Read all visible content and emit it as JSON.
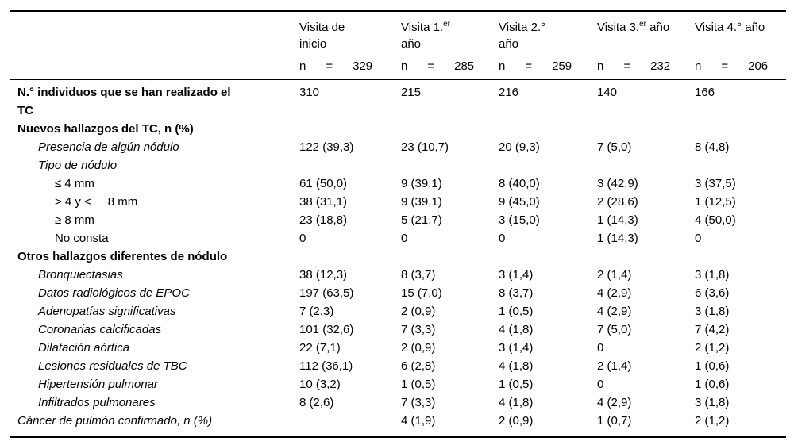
{
  "colors": {
    "text": "#000000",
    "background": "#ffffff",
    "rule": "#000000"
  },
  "table": {
    "columns": [
      {
        "line1_pre": "Visita de",
        "line1_sup": "",
        "line1_post": "",
        "line2": "inicio",
        "n_label": "n      =      329"
      },
      {
        "line1_pre": "Visita 1.",
        "line1_sup": "er",
        "line1_post": "",
        "line2": "año",
        "n_label": "n      =      285"
      },
      {
        "line1_pre": "Visita 2.°",
        "line1_sup": "",
        "line1_post": "",
        "line2": "año",
        "n_label": "n      =      259"
      },
      {
        "line1_pre": "Visita 3.",
        "line1_sup": "er",
        "line1_post": " año",
        "line2": "",
        "n_label": "n      =      232"
      },
      {
        "line1_pre": "Visita 4.° año",
        "line1_sup": "",
        "line1_post": "",
        "line2": "",
        "n_label": "n      =      206"
      }
    ],
    "rows": [
      {
        "label": "N.° individuos que se han realizado el",
        "label2": "TC",
        "style": "bold",
        "indent": 0,
        "values": [
          "310",
          "215",
          "216",
          "140",
          "166"
        ]
      },
      {
        "label": "Nuevos hallazgos del TC, n (%)",
        "label2": "",
        "style": "bold",
        "indent": 0,
        "values": [
          "",
          "",
          "",
          "",
          ""
        ]
      },
      {
        "label": "Presencia de algún nódulo",
        "label2": "",
        "style": "italic",
        "indent": 1,
        "values": [
          "122 (39,3)",
          "23 (10,7)",
          "20 (9,3)",
          "7 (5,0)",
          "8 (4,8)"
        ]
      },
      {
        "label": "Tipo de nódulo",
        "label2": "",
        "style": "italic",
        "indent": 1,
        "values": [
          "",
          "",
          "",
          "",
          ""
        ]
      },
      {
        "label": "≤ 4 mm",
        "label2": "",
        "style": "regular",
        "indent": 2,
        "values": [
          "61 (50,0)",
          "9 (39,1)",
          "8 (40,0)",
          "3 (42,9)",
          "3 (37,5)"
        ]
      },
      {
        "label": "> 4 y <     8 mm",
        "label2": "",
        "style": "regular",
        "indent": 2,
        "values": [
          "38 (31,1)",
          "9 (39,1)",
          "9 (45,0)",
          "2 (28,6)",
          "1 (12,5)"
        ]
      },
      {
        "label": "≥ 8 mm",
        "label2": "",
        "style": "regular",
        "indent": 2,
        "values": [
          "23 (18,8)",
          "5 (21,7)",
          "3 (15,0)",
          "1 (14,3)",
          "4 (50,0)"
        ]
      },
      {
        "label": "No consta",
        "label2": "",
        "style": "regular",
        "indent": 2,
        "values": [
          "0",
          "0",
          "0",
          "1 (14,3)",
          "0"
        ]
      },
      {
        "label": "Otros hallazgos diferentes de nódulo",
        "label2": "",
        "style": "bold",
        "indent": 0,
        "values": [
          "",
          "",
          "",
          "",
          ""
        ]
      },
      {
        "label": "Bronquiectasias",
        "label2": "",
        "style": "italic",
        "indent": 1,
        "values": [
          "38 (12,3)",
          "8 (3,7)",
          "3 (1,4)",
          "2 (1,4)",
          "3 (1,8)"
        ]
      },
      {
        "label": "Datos radiológicos de EPOC",
        "label2": "",
        "style": "italic",
        "indent": 1,
        "values": [
          "197 (63,5)",
          "15 (7,0)",
          "8 (3,7)",
          "4 (2,9)",
          "6 (3,6)"
        ]
      },
      {
        "label": "Adenopatías significativas",
        "label2": "",
        "style": "italic",
        "indent": 1,
        "values": [
          "7 (2,3)",
          "2 (0,9)",
          "1 (0,5)",
          "4 (2,9)",
          "3 (1,8)"
        ]
      },
      {
        "label": "Coronarias calcificadas",
        "label2": "",
        "style": "italic",
        "indent": 1,
        "values": [
          "101 (32,6)",
          "7 (3,3)",
          "4 (1,8)",
          "7 (5,0)",
          "7 (4,2)"
        ]
      },
      {
        "label": "Dilatación aórtica",
        "label2": "",
        "style": "italic",
        "indent": 1,
        "values": [
          "22 (7,1)",
          "2 (0,9)",
          "3 (1,4)",
          "0",
          "2 (1,2)"
        ]
      },
      {
        "label": "Lesiones residuales de TBC",
        "label2": "",
        "style": "italic",
        "indent": 1,
        "values": [
          "112 (36,1)",
          "6 (2,8)",
          "4 (1,8)",
          "2 (1,4)",
          "1 (0,6)"
        ]
      },
      {
        "label": "Hipertensión pulmonar",
        "label2": "",
        "style": "italic",
        "indent": 1,
        "values": [
          "10 (3,2)",
          "1 (0,5)",
          "1 (0,5)",
          "0",
          "1 (0,6)"
        ]
      },
      {
        "label": "Infiltrados pulmonares",
        "label2": "",
        "style": "italic",
        "indent": 1,
        "values": [
          "8 (2,6)",
          "7 (3,3)",
          "4 (1,8)",
          "4 (2,9)",
          "3 (1,8)"
        ]
      },
      {
        "label": "Cáncer de pulmón confirmado, n (%)",
        "label2": "",
        "style": "italic",
        "indent": 0,
        "values": [
          "",
          "4 (1,9)",
          "2 (0,9)",
          "1 (0,7)",
          "2 (1,2)"
        ]
      }
    ]
  }
}
